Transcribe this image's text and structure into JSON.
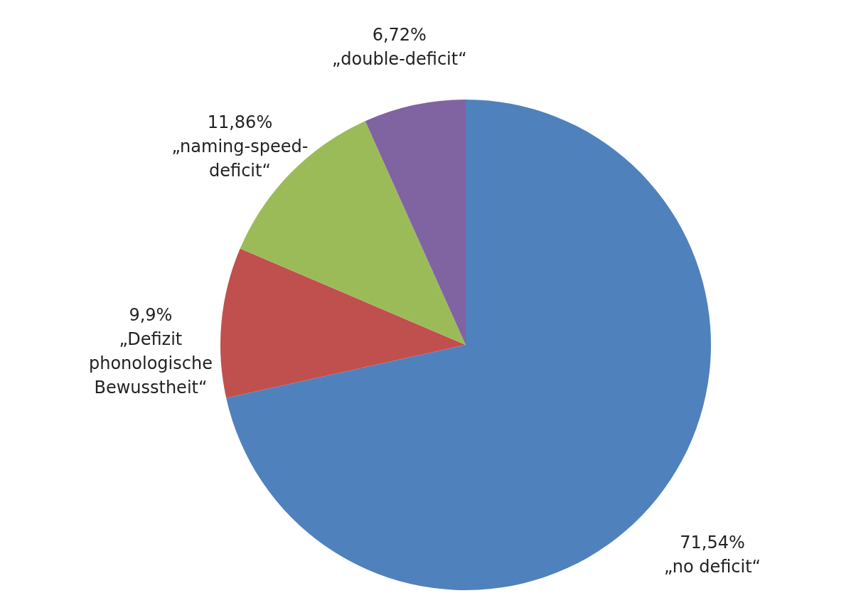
{
  "chart_data": {
    "type": "pie",
    "categories": [
      "„no deficit“",
      "„Defizit phonologische Bewusstheit“",
      "„naming-speed-deficit“",
      "„double-deficit“"
    ],
    "values": [
      71.54,
      9.9,
      11.86,
      6.72
    ],
    "value_labels": [
      "71,54%",
      "9,9%",
      "11,86%",
      "6,72%"
    ],
    "colors": [
      "#4f81bd",
      "#c0504d",
      "#9bbb59",
      "#8064a2"
    ]
  }
}
